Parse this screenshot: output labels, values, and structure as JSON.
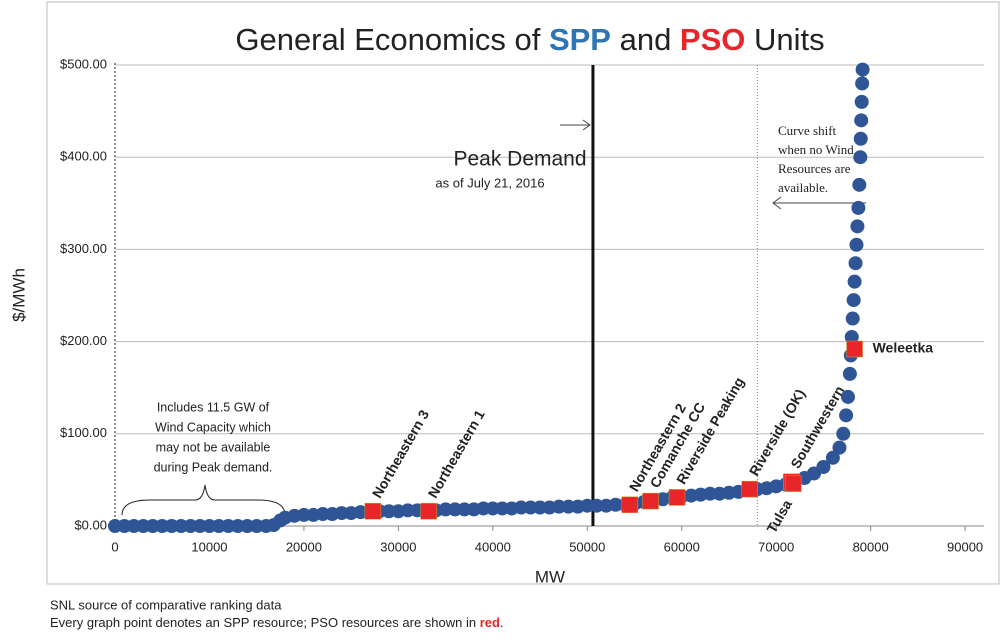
{
  "chart_data": {
    "type": "scatter",
    "title_parts": [
      "General Economics of ",
      "SPP",
      " and ",
      "PSO",
      " Units"
    ],
    "title_colors": [
      "#222222",
      "#2e75b6",
      "#222222",
      "#e8262a",
      "#222222"
    ],
    "x_label": "MW",
    "y_label": "$/MWh",
    "xlim": [
      0,
      92000
    ],
    "ylim": [
      0,
      500
    ],
    "xticks": [
      0,
      10000,
      20000,
      30000,
      40000,
      50000,
      60000,
      70000,
      80000,
      90000
    ],
    "yticks": [
      {
        "value": 0,
        "label": "$0.00"
      },
      {
        "value": 100,
        "label": "$100.00"
      },
      {
        "value": 200,
        "label": "$200.00"
      },
      {
        "value": 300,
        "label": "$300.00"
      },
      {
        "value": 400,
        "label": "$400.00"
      },
      {
        "value": 500,
        "label": "$500.00"
      }
    ],
    "grid": true,
    "series": [
      {
        "name": "SPP",
        "color": "#2f5597",
        "x": [
          0,
          1000,
          2000,
          3000,
          4000,
          5000,
          6000,
          7000,
          8000,
          9000,
          10000,
          11000,
          12000,
          13000,
          14000,
          15000,
          16000,
          16800,
          17500,
          18000,
          19000,
          20000,
          21000,
          22000,
          23000,
          24000,
          25000,
          26000,
          27000,
          28000,
          29000,
          30000,
          31000,
          32000,
          33000,
          34000,
          35000,
          36000,
          37000,
          38000,
          39000,
          40000,
          41000,
          42000,
          43000,
          44000,
          45000,
          46000,
          47000,
          48000,
          49000,
          50000,
          51000,
          52000,
          53000,
          54000,
          55000,
          56000,
          57000,
          58000,
          59000,
          60000,
          61000,
          62000,
          63000,
          64000,
          65000,
          66000,
          67000,
          68000,
          69000,
          70000,
          71000,
          72000,
          73000,
          74000,
          75000,
          76000,
          76700,
          77100,
          77400,
          77600,
          77800,
          77900,
          78000,
          78100,
          78200,
          78300,
          78400,
          78500,
          78600,
          78700,
          78800,
          78900,
          78950,
          79000,
          79050,
          79100,
          79150
        ],
        "values": [
          0,
          0,
          0,
          0,
          0,
          0,
          0,
          0,
          0,
          0,
          0,
          0,
          0,
          0,
          0,
          0,
          0,
          1,
          6,
          9,
          11,
          12,
          12,
          13,
          13,
          14,
          14,
          15,
          15,
          16,
          16,
          16,
          17,
          17,
          17,
          17,
          18,
          18,
          18,
          18,
          19,
          19,
          19,
          19,
          20,
          20,
          20,
          20,
          21,
          21,
          21,
          22,
          22,
          22,
          23,
          23,
          24,
          26,
          28,
          29,
          31,
          32,
          33,
          34,
          35,
          35,
          36,
          37,
          39,
          40,
          41,
          43,
          45,
          48,
          52,
          57,
          64,
          74,
          85,
          100,
          120,
          140,
          165,
          185,
          205,
          225,
          245,
          265,
          285,
          305,
          325,
          345,
          370,
          400,
          420,
          440,
          460,
          480,
          495
        ]
      },
      {
        "name": "PSO",
        "color": "#e8262a",
        "x": [
          27300,
          33200,
          54500,
          56700,
          59500,
          67200,
          71600,
          71800,
          78300
        ],
        "values": [
          16,
          16,
          23,
          27,
          31,
          40,
          48,
          46,
          192
        ],
        "point_labels": [
          "Northeastern 3",
          "Northeastern 1",
          "Northeastern 2",
          "Comanche CC",
          "Riverside Peaking",
          "Riverside (OK)",
          "Southwestern",
          "Tulsa",
          "Weleetka"
        ]
      }
    ],
    "peak_demand_x": 50600,
    "peak_label": "Peak Demand",
    "peak_date": "as of July 21, 2016",
    "wind_shift_x": 68000,
    "wind_shift_note": [
      "Curve shift",
      "when no Wind",
      "Resources are",
      "available."
    ],
    "wind_note": [
      "Includes 11.5 GW of",
      "Wind Capacity which",
      "may not be available",
      "during Peak demand."
    ],
    "footnote": "SNL source of comparative ranking data",
    "footnote2_parts": [
      "Every graph point denotes an SPP resource; PSO resources are shown in ",
      "red",
      "."
    ]
  }
}
